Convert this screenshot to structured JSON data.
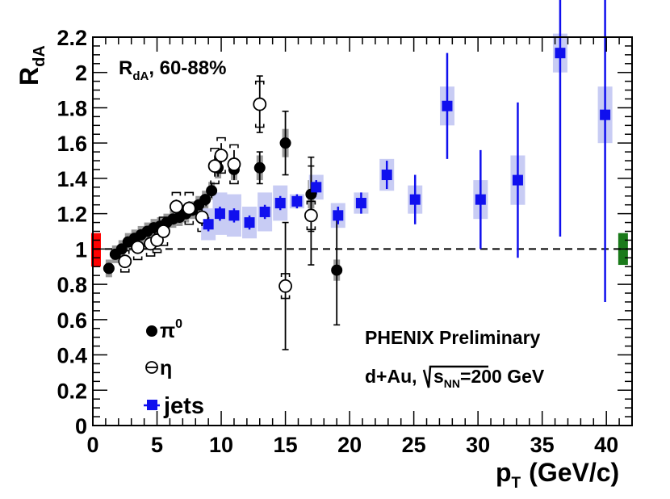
{
  "chart_data": {
    "type": "scatter",
    "title": "R_dA, 60-88%",
    "title_main": "R",
    "title_sub": "dA",
    "title_rest": ", 60-88%",
    "ylabel_main": "R",
    "ylabel_sub": "dA",
    "xlabel_main": "p",
    "xlabel_sub": "T",
    "xlabel_rest": "(GeV/c)",
    "xlim": [
      0,
      42
    ],
    "ylim": [
      0,
      2.2
    ],
    "xticks": [
      0,
      5,
      10,
      15,
      20,
      25,
      30,
      35,
      40
    ],
    "xtick_labels": [
      "0",
      "5",
      "10",
      "15",
      "20",
      "25",
      "30",
      "35",
      "40"
    ],
    "yticks": [
      0,
      0.2,
      0.4,
      0.6,
      0.8,
      1,
      1.2,
      1.4,
      1.6,
      1.8,
      2,
      2.2
    ],
    "ytick_labels": [
      "0",
      "0.2",
      "0.4",
      "0.6",
      "0.8",
      "1",
      "1.2",
      "1.4",
      "1.6",
      "1.8",
      "2",
      "2.2"
    ],
    "reference_line": 1,
    "annotation_1": "PHENIX Preliminary",
    "annotation_2_pre": "d+Au,",
    "annotation_2_sub_s": "s",
    "annotation_2_sub": "NN",
    "annotation_2_post": "=200 GeV",
    "legend_placement": "bottom-left",
    "legend": [
      {
        "label": "π",
        "sup": "0",
        "marker": "filled-circle"
      },
      {
        "label": "η",
        "sup": "",
        "marker": "open-circle"
      },
      {
        "label": "jets",
        "sup": "",
        "marker": "square"
      }
    ],
    "norm_boxes": [
      {
        "name": "pi0/eta normalization",
        "x": 0.25,
        "low": 0.9,
        "high": 1.09,
        "color": "#ff0000"
      },
      {
        "name": "jets normalization",
        "x": 41.3,
        "low": 0.91,
        "high": 1.09,
        "color": "#1a7a1a"
      }
    ],
    "series": [
      {
        "name": "pi0",
        "marker": "filled-circle",
        "color": "#000000",
        "sys_color": "#999999",
        "points": [
          {
            "x": 1.25,
            "y": 0.89,
            "err": 0.02,
            "sys": 0.05
          },
          {
            "x": 1.75,
            "y": 0.97,
            "err": 0.01,
            "sys": 0.05
          },
          {
            "x": 2.25,
            "y": 1.0,
            "err": 0.01,
            "sys": 0.05
          },
          {
            "x": 2.75,
            "y": 1.04,
            "err": 0.01,
            "sys": 0.05
          },
          {
            "x": 3.25,
            "y": 1.06,
            "err": 0.01,
            "sys": 0.05
          },
          {
            "x": 3.75,
            "y": 1.08,
            "err": 0.01,
            "sys": 0.05
          },
          {
            "x": 4.25,
            "y": 1.1,
            "err": 0.01,
            "sys": 0.05
          },
          {
            "x": 4.75,
            "y": 1.12,
            "err": 0.01,
            "sys": 0.05
          },
          {
            "x": 5.25,
            "y": 1.13,
            "err": 0.01,
            "sys": 0.05
          },
          {
            "x": 5.75,
            "y": 1.15,
            "err": 0.01,
            "sys": 0.05
          },
          {
            "x": 6.25,
            "y": 1.17,
            "err": 0.02,
            "sys": 0.05
          },
          {
            "x": 6.75,
            "y": 1.18,
            "err": 0.02,
            "sys": 0.05
          },
          {
            "x": 7.25,
            "y": 1.2,
            "err": 0.02,
            "sys": 0.05
          },
          {
            "x": 7.75,
            "y": 1.22,
            "err": 0.02,
            "sys": 0.05
          },
          {
            "x": 8.25,
            "y": 1.25,
            "err": 0.03,
            "sys": 0.05
          },
          {
            "x": 8.75,
            "y": 1.28,
            "err": 0.03,
            "sys": 0.05
          },
          {
            "x": 9.25,
            "y": 1.33,
            "err": 0.04,
            "sys": 0.05
          },
          {
            "x": 9.75,
            "y": 1.46,
            "err": 0.05,
            "sys": 0.06
          },
          {
            "x": 11.0,
            "y": 1.45,
            "err": 0.06,
            "sys": 0.06
          },
          {
            "x": 13.0,
            "y": 1.46,
            "err": 0.09,
            "sys": 0.07
          },
          {
            "x": 15.0,
            "y": 1.6,
            "err": 0.18,
            "sys": 0.08
          },
          {
            "x": 17.0,
            "y": 1.31,
            "err": 0.21,
            "sys": 0.08
          },
          {
            "x": 19.0,
            "y": 0.88,
            "err": 0.31,
            "sys": 0.06
          }
        ]
      },
      {
        "name": "eta",
        "marker": "open-circle",
        "color": "#000000",
        "sys_color": "#000000",
        "points": [
          {
            "x": 2.5,
            "y": 0.93,
            "err": 0.03,
            "sys": 0.06
          },
          {
            "x": 3.5,
            "y": 1.01,
            "err": 0.03,
            "sys": 0.07
          },
          {
            "x": 4.5,
            "y": 1.03,
            "err": 0.03,
            "sys": 0.07
          },
          {
            "x": 5.0,
            "y": 1.05,
            "err": 0.03,
            "sys": 0.07
          },
          {
            "x": 5.5,
            "y": 1.1,
            "err": 0.03,
            "sys": 0.08
          },
          {
            "x": 6.5,
            "y": 1.24,
            "err": 0.04,
            "sys": 0.08
          },
          {
            "x": 7.5,
            "y": 1.23,
            "err": 0.04,
            "sys": 0.09
          },
          {
            "x": 8.5,
            "y": 1.18,
            "err": 0.05,
            "sys": 0.08
          },
          {
            "x": 9.5,
            "y": 1.47,
            "err": 0.06,
            "sys": 0.1
          },
          {
            "x": 10.0,
            "y": 1.53,
            "err": 0.07,
            "sys": 0.1
          },
          {
            "x": 11.0,
            "y": 1.48,
            "err": 0.08,
            "sys": 0.11
          },
          {
            "x": 13.0,
            "y": 1.82,
            "err": 0.16,
            "sys": 0.13
          },
          {
            "x": 15.0,
            "y": 0.79,
            "err": 0.36,
            "sys": 0.07
          },
          {
            "x": 17.0,
            "y": 1.19,
            "err": 0.28,
            "sys": 0.08
          }
        ]
      },
      {
        "name": "jets",
        "marker": "square",
        "color": "#1010ee",
        "sys_color": "#c8ccf4",
        "points": [
          {
            "x": 9.0,
            "y": 1.14,
            "err": 0.04,
            "sys": 0.09
          },
          {
            "x": 9.9,
            "y": 1.2,
            "err": 0.04,
            "sys": 0.12
          },
          {
            "x": 11.0,
            "y": 1.19,
            "err": 0.04,
            "sys": 0.12
          },
          {
            "x": 12.2,
            "y": 1.15,
            "err": 0.04,
            "sys": 0.09
          },
          {
            "x": 13.4,
            "y": 1.21,
            "err": 0.04,
            "sys": 0.11
          },
          {
            "x": 14.6,
            "y": 1.26,
            "err": 0.04,
            "sys": 0.1
          },
          {
            "x": 15.9,
            "y": 1.27,
            "err": 0.04,
            "sys": 0.04
          },
          {
            "x": 17.4,
            "y": 1.35,
            "err": 0.04,
            "sys": 0.07
          },
          {
            "x": 19.1,
            "y": 1.19,
            "err": 0.05,
            "sys": 0.07
          },
          {
            "x": 20.9,
            "y": 1.26,
            "err": 0.06,
            "sys": 0.06
          },
          {
            "x": 22.9,
            "y": 1.42,
            "err": 0.08,
            "sys": 0.09
          },
          {
            "x": 25.1,
            "y": 1.28,
            "err": 0.14,
            "sys": 0.08
          },
          {
            "x": 27.6,
            "y": 1.81,
            "err": 0.3,
            "sys": 0.11
          },
          {
            "x": 30.2,
            "y": 1.28,
            "err": 0.28,
            "sys": 0.11
          },
          {
            "x": 33.1,
            "y": 1.39,
            "err": 0.44,
            "sys": 0.14
          },
          {
            "x": 36.4,
            "y": 2.11,
            "err": 1.04,
            "sys": 0.11
          },
          {
            "x": 39.9,
            "y": 1.76,
            "err": 1.06,
            "sys": 0.16
          }
        ]
      }
    ]
  }
}
